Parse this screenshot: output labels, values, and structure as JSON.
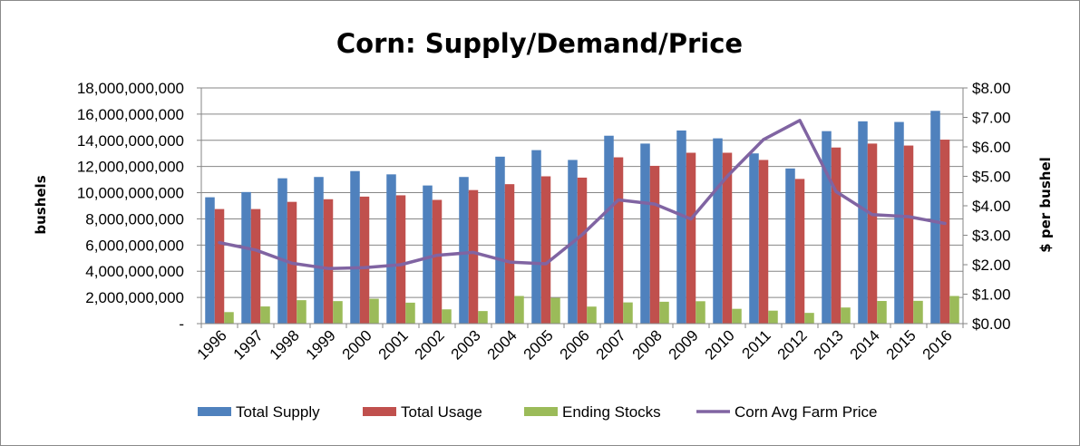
{
  "chart_data": {
    "type": "bar",
    "title": "Corn:  Supply/Demand/Price",
    "categories": [
      "1996",
      "1997",
      "1998",
      "1999",
      "2000",
      "2001",
      "2002",
      "2003",
      "2004",
      "2005",
      "2006",
      "2007",
      "2008",
      "2009",
      "2010",
      "2011",
      "2012",
      "2013",
      "2014",
      "2015",
      "2016"
    ],
    "series": [
      {
        "name": "Total Supply",
        "type": "bar",
        "axis": "left",
        "color": "#4F81BD",
        "values": [
          9650000000,
          10050000000,
          11100000000,
          11200000000,
          11650000000,
          11400000000,
          10550000000,
          11200000000,
          12750000000,
          13250000000,
          12500000000,
          14350000000,
          13750000000,
          14750000000,
          14150000000,
          13000000000,
          11850000000,
          14700000000,
          15450000000,
          15400000000,
          16250000000
        ]
      },
      {
        "name": "Total Usage",
        "type": "bar",
        "axis": "left",
        "color": "#C0504D",
        "values": [
          8750000000,
          8750000000,
          9300000000,
          9500000000,
          9700000000,
          9800000000,
          9450000000,
          10200000000,
          10650000000,
          11250000000,
          11150000000,
          12700000000,
          12050000000,
          13050000000,
          13050000000,
          12500000000,
          11050000000,
          13450000000,
          13750000000,
          13600000000,
          14050000000
        ]
      },
      {
        "name": "Ending Stocks",
        "type": "bar",
        "axis": "left",
        "color": "#9BBB59",
        "values": [
          880000000,
          1310000000,
          1790000000,
          1720000000,
          1900000000,
          1600000000,
          1090000000,
          960000000,
          2110000000,
          1970000000,
          1300000000,
          1620000000,
          1670000000,
          1710000000,
          1130000000,
          990000000,
          820000000,
          1230000000,
          1730000000,
          1740000000,
          2110000000
        ]
      },
      {
        "name": "Corn Avg Farm Price",
        "type": "line",
        "axis": "right",
        "color": "#8064A2",
        "values": [
          2.75,
          2.5,
          2.05,
          1.87,
          1.9,
          2.0,
          2.32,
          2.42,
          2.09,
          2.03,
          3.02,
          4.2,
          4.06,
          3.55,
          5.0,
          6.25,
          6.9,
          4.48,
          3.7,
          3.63,
          3.4
        ]
      }
    ],
    "ylabel": "bushels",
    "ylim": [
      0,
      18000000000
    ],
    "yticks": [
      "-",
      "2,000,000,000",
      "4,000,000,000",
      "6,000,000,000",
      "8,000,000,000",
      "10,000,000,000",
      "12,000,000,000",
      "14,000,000,000",
      "16,000,000,000",
      "18,000,000,000"
    ],
    "y2label": "$ per bushel",
    "y2lim": [
      0,
      8
    ],
    "y2ticks": [
      "$0.00",
      "$1.00",
      "$2.00",
      "$3.00",
      "$4.00",
      "$5.00",
      "$6.00",
      "$7.00",
      "$8.00"
    ],
    "grid": true,
    "legend_position": "bottom"
  }
}
